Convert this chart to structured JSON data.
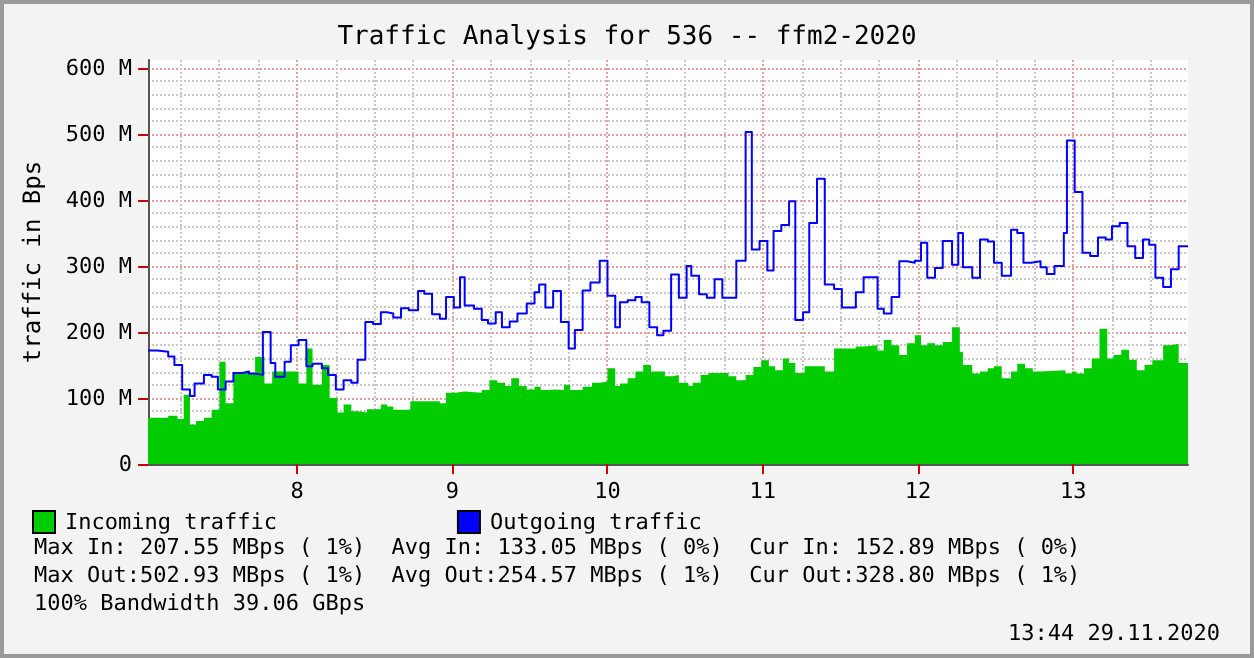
{
  "chart_data": {
    "type": "step",
    "title": "Traffic Analysis for 536 -- ffm2-2020",
    "ylabel": "traffic in Bps",
    "xlim": [
      7.04,
      13.74
    ],
    "xticks": [
      8,
      9,
      10,
      11,
      12,
      13
    ],
    "ylim": [
      0,
      612
    ],
    "yticks": [
      {
        "value": 0,
        "label": "0"
      },
      {
        "value": 100,
        "label": "100 M"
      },
      {
        "value": 200,
        "label": "200 M"
      },
      {
        "value": 300,
        "label": "300 M"
      },
      {
        "value": 400,
        "label": "400 M"
      },
      {
        "value": 500,
        "label": "500 M"
      },
      {
        "value": 600,
        "label": "600 M"
      }
    ],
    "grid": true,
    "legend": "bottom left",
    "series": [
      {
        "name": "Incoming traffic",
        "type": "area",
        "color": "#00cc00",
        "x": [
          7.04,
          7.17,
          7.23,
          7.27,
          7.31,
          7.35,
          7.4,
          7.45,
          7.5,
          7.54,
          7.59,
          7.73,
          7.79,
          7.84,
          8.01,
          8.06,
          8.1,
          8.16,
          8.21,
          8.26,
          8.3,
          8.35,
          8.39,
          8.45,
          8.54,
          8.58,
          8.62,
          8.73,
          8.92,
          8.96,
          9.02,
          9.08,
          9.19,
          9.24,
          9.29,
          9.34,
          9.38,
          9.43,
          9.48,
          9.53,
          9.57,
          9.61,
          9.67,
          9.72,
          9.76,
          9.84,
          9.9,
          9.95,
          10.0,
          10.05,
          10.08,
          10.13,
          10.18,
          10.23,
          10.28,
          10.37,
          10.42,
          10.46,
          10.52,
          10.55,
          10.6,
          10.65,
          10.78,
          10.83,
          10.89,
          10.94,
          10.99,
          11.04,
          11.08,
          11.13,
          11.17,
          11.21,
          11.27,
          11.4,
          11.46,
          11.6,
          11.65,
          11.74,
          11.78,
          11.83,
          11.88,
          11.93,
          11.98,
          12.02,
          12.06,
          12.11,
          12.16,
          12.22,
          12.27,
          12.29,
          12.35,
          12.4,
          12.45,
          12.49,
          12.54,
          12.6,
          12.64,
          12.69,
          12.74,
          12.79,
          12.95,
          12.99,
          13.02,
          13.07,
          13.12,
          13.17,
          13.22,
          13.26,
          13.31,
          13.36,
          13.41,
          13.46,
          13.51,
          13.58,
          13.63,
          13.68,
          13.74
        ],
        "values": [
          70,
          73,
          68,
          105,
          60,
          65,
          70,
          82,
          155,
          92,
          138,
          162,
          122,
          140,
          122,
          175,
          120,
          150,
          100,
          78,
          90,
          80,
          78,
          83,
          90,
          87,
          82,
          95,
          92,
          108,
          110,
          108,
          112,
          127,
          123,
          118,
          130,
          118,
          113,
          117,
          112,
          113,
          112,
          120,
          112,
          117,
          123,
          125,
          145,
          118,
          122,
          130,
          140,
          150,
          140,
          133,
          135,
          123,
          118,
          123,
          135,
          138,
          133,
          127,
          135,
          147,
          157,
          148,
          142,
          160,
          153,
          138,
          148,
          140,
          175,
          178,
          180,
          172,
          188,
          180,
          165,
          183,
          195,
          180,
          183,
          180,
          185,
          207,
          170,
          150,
          137,
          140,
          145,
          148,
          130,
          140,
          152,
          145,
          140,
          142,
          137,
          140,
          137,
          145,
          160,
          205,
          160,
          165,
          173,
          158,
          142,
          150,
          157,
          180,
          182,
          153,
          153
        ]
      },
      {
        "name": "Outgoing traffic",
        "type": "step",
        "color": "#0000ff",
        "x": [
          7.04,
          7.1,
          7.17,
          7.21,
          7.26,
          7.31,
          7.34,
          7.4,
          7.45,
          7.49,
          7.54,
          7.59,
          7.65,
          7.69,
          7.73,
          7.78,
          7.83,
          7.86,
          7.92,
          7.96,
          8.01,
          8.06,
          8.1,
          8.16,
          8.2,
          8.25,
          8.3,
          8.35,
          8.39,
          8.44,
          8.49,
          8.54,
          8.58,
          8.62,
          8.67,
          8.72,
          8.78,
          8.82,
          8.87,
          8.92,
          8.96,
          9.01,
          9.05,
          9.08,
          9.14,
          9.19,
          9.23,
          9.28,
          9.32,
          9.37,
          9.42,
          9.48,
          9.53,
          9.56,
          9.6,
          9.65,
          9.7,
          9.75,
          9.79,
          9.84,
          9.89,
          9.95,
          10.0,
          10.05,
          10.08,
          10.13,
          10.18,
          10.22,
          10.27,
          10.32,
          10.36,
          10.41,
          10.46,
          10.51,
          10.54,
          10.59,
          10.64,
          10.69,
          10.74,
          10.83,
          10.89,
          10.93,
          10.98,
          11.03,
          11.07,
          11.12,
          11.17,
          11.21,
          11.26,
          11.3,
          11.35,
          11.4,
          11.46,
          11.51,
          11.6,
          11.65,
          11.74,
          11.78,
          11.83,
          11.88,
          11.93,
          11.98,
          12.02,
          12.06,
          12.11,
          12.16,
          12.22,
          12.26,
          12.29,
          12.35,
          12.4,
          12.45,
          12.49,
          12.54,
          12.6,
          12.64,
          12.68,
          12.73,
          12.79,
          12.83,
          12.88,
          12.94,
          12.96,
          13.01,
          13.06,
          13.11,
          13.16,
          13.21,
          13.25,
          13.3,
          13.35,
          13.4,
          13.45,
          13.49,
          13.53,
          13.58,
          13.63,
          13.68,
          13.74
        ],
        "values": [
          172,
          170,
          163,
          150,
          113,
          103,
          122,
          135,
          132,
          113,
          125,
          138,
          140,
          137,
          135,
          200,
          153,
          132,
          155,
          180,
          188,
          148,
          152,
          145,
          135,
          113,
          127,
          123,
          158,
          215,
          212,
          230,
          228,
          222,
          236,
          233,
          262,
          258,
          227,
          220,
          253,
          237,
          283,
          240,
          235,
          218,
          213,
          230,
          207,
          216,
          228,
          243,
          260,
          272,
          237,
          262,
          215,
          175,
          203,
          263,
          275,
          308,
          255,
          207,
          245,
          248,
          253,
          245,
          207,
          195,
          202,
          287,
          252,
          300,
          285,
          257,
          252,
          280,
          252,
          308,
          503,
          325,
          338,
          293,
          353,
          362,
          398,
          218,
          230,
          365,
          432,
          272,
          265,
          237,
          260,
          283,
          235,
          228,
          253,
          307,
          305,
          308,
          335,
          282,
          297,
          338,
          302,
          350,
          298,
          282,
          340,
          337,
          305,
          285,
          355,
          350,
          305,
          307,
          298,
          288,
          300,
          350,
          490,
          412,
          320,
          315,
          343,
          340,
          360,
          365,
          330,
          312,
          340,
          332,
          282,
          268,
          295,
          330,
          330
        ]
      }
    ],
    "annotations": [
      "Max In: 207.55 MBps ( 1%)  Avg In: 133.05 MBps ( 0%)  Cur In: 152.89 MBps ( 0%)",
      "Max Out:502.93 MBps ( 1%)  Avg Out:254.57 MBps ( 1%)  Cur Out:328.80 MBps ( 1%)",
      "100% Bandwidth 39.06 GBps",
      "13:44 29.11.2020"
    ]
  }
}
